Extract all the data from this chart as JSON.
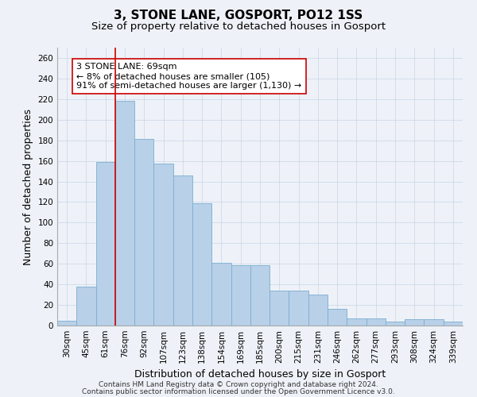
{
  "title1": "3, STONE LANE, GOSPORT, PO12 1SS",
  "title2": "Size of property relative to detached houses in Gosport",
  "xlabel": "Distribution of detached houses by size in Gosport",
  "ylabel": "Number of detached properties",
  "categories": [
    "30sqm",
    "45sqm",
    "61sqm",
    "76sqm",
    "92sqm",
    "107sqm",
    "123sqm",
    "138sqm",
    "154sqm",
    "169sqm",
    "185sqm",
    "200sqm",
    "215sqm",
    "231sqm",
    "246sqm",
    "262sqm",
    "277sqm",
    "293sqm",
    "308sqm",
    "324sqm",
    "339sqm"
  ],
  "values": [
    5,
    38,
    159,
    218,
    181,
    157,
    146,
    119,
    61,
    59,
    59,
    34,
    34,
    30,
    16,
    7,
    7,
    4,
    6,
    6,
    4
  ],
  "bar_color": "#b8d0e8",
  "bar_edge_color": "#7aaed0",
  "vline_color": "#cc0000",
  "vline_x": 2.5,
  "annotation_text": "3 STONE LANE: 69sqm\n← 8% of detached houses are smaller (105)\n91% of semi-detached houses are larger (1,130) →",
  "annotation_box_color": "#ffffff",
  "annotation_box_edge_color": "#cc0000",
  "ylim": [
    0,
    270
  ],
  "yticks": [
    0,
    20,
    40,
    60,
    80,
    100,
    120,
    140,
    160,
    180,
    200,
    220,
    240,
    260
  ],
  "footer1": "Contains HM Land Registry data © Crown copyright and database right 2024.",
  "footer2": "Contains public sector information licensed under the Open Government Licence v3.0.",
  "background_color": "#eef2f8",
  "title1_fontsize": 11,
  "title2_fontsize": 9.5,
  "axis_label_fontsize": 9,
  "tick_fontsize": 7.5,
  "annotation_fontsize": 8,
  "footer_fontsize": 6.5
}
